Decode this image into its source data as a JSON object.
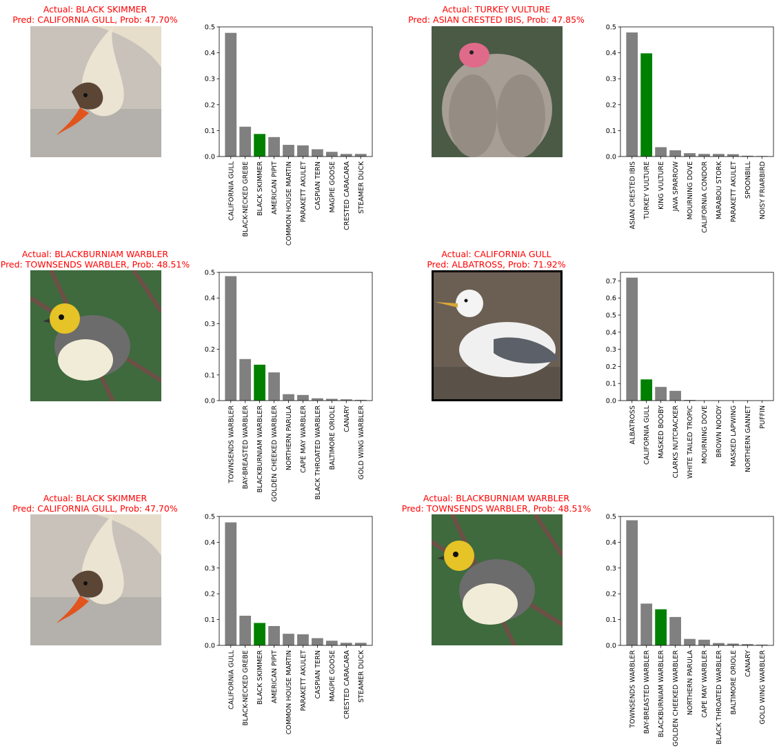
{
  "panels": [
    {
      "actual_text": "Actual: BLACK SKIMMER",
      "pred_text": "Pred: CALIFORNIA GULL, Prob: 47.70%",
      "image_icon": "black-skimmer-bird-photo",
      "chart_data": {
        "type": "bar",
        "categories": [
          "CALIFORNIA GULL",
          "BLACK-NECKED GREBE",
          "BLACK SKIMMER",
          "AMERICAN PIPIT",
          "COMMON HOUSE MARTIN",
          "PARAKETT  AKULET",
          "CASPIAN TERN",
          "MAGPIE GOOSE",
          "CRESTED CARACARA",
          "STEAMER DUCK"
        ],
        "values": [
          0.477,
          0.115,
          0.087,
          0.075,
          0.045,
          0.043,
          0.028,
          0.018,
          0.01,
          0.01
        ],
        "highlight_index": 2,
        "ylim": [
          0,
          0.5
        ],
        "yticks": [
          "0.0",
          "0.1",
          "0.2",
          "0.3",
          "0.4",
          "0.5"
        ],
        "bar_color": "#808080",
        "highlight_color": "#008000"
      }
    },
    {
      "actual_text": "Actual: TURKEY VULTURE",
      "pred_text": "Pred: ASIAN CRESTED IBIS, Prob: 47.85%",
      "image_icon": "turkey-vulture-bird-photo",
      "chart_data": {
        "type": "bar",
        "categories": [
          "ASIAN CRESTED IBIS",
          "TURKEY VULTURE",
          "KING VULTURE",
          "JAVA SPARROW",
          "MOURNING DOVE",
          "CALIFORNIA CONDOR",
          "MARABOU STORK",
          "PARAKETT  AKULET",
          "SPOONBILL",
          "NOISY FRIARBIRD"
        ],
        "values": [
          0.4785,
          0.398,
          0.036,
          0.024,
          0.013,
          0.01,
          0.01,
          0.009,
          0.003,
          0.002
        ],
        "highlight_index": 1,
        "ylim": [
          0,
          0.5
        ],
        "yticks": [
          "0.0",
          "0.1",
          "0.2",
          "0.3",
          "0.4",
          "0.5"
        ],
        "bar_color": "#808080",
        "highlight_color": "#008000"
      }
    },
    {
      "actual_text": "Actual: BLACKBURNIAM WARBLER",
      "pred_text": "Pred: TOWNSENDS WARBLER, Prob: 48.51%",
      "image_icon": "blackburnian-warbler-bird-photo",
      "chart_data": {
        "type": "bar",
        "categories": [
          "TOWNSENDS WARBLER",
          "BAY-BREASTED WARBLER",
          "BLACKBURNIAM WARBLER",
          "GOLDEN CHEEKED WARBLER",
          "NORTHERN PARULA",
          "CAPE MAY WARBLER",
          "BLACK THROATED WARBLER",
          "BALTIMORE ORIOLE",
          "CANARY",
          "GOLD WING WARBLER"
        ],
        "values": [
          0.4851,
          0.162,
          0.14,
          0.11,
          0.025,
          0.022,
          0.009,
          0.007,
          0.005,
          0.003
        ],
        "highlight_index": 2,
        "ylim": [
          0,
          0.5
        ],
        "yticks": [
          "0.0",
          "0.1",
          "0.2",
          "0.3",
          "0.4",
          "0.5"
        ],
        "bar_color": "#808080",
        "highlight_color": "#008000"
      }
    },
    {
      "actual_text": "Actual: CALIFORNIA GULL",
      "pred_text": "Pred: ALBATROSS, Prob: 71.92%",
      "image_icon": "california-gull-bird-photo",
      "chart_data": {
        "type": "bar",
        "categories": [
          "ALBATROSS",
          "CALIFORNIA GULL",
          "MASKED BOOBY",
          "CLARKS NUTCRACKER",
          "WHITE TAILED TROPIC",
          "MOURNING DOVE",
          "BROWN NOODY",
          "MASKED LAPWING",
          "NORTHERN GANNET",
          "PUFFIN"
        ],
        "values": [
          0.7192,
          0.124,
          0.08,
          0.057,
          0.004,
          0.001,
          0.001,
          0.001,
          0.0005,
          0.0005
        ],
        "highlight_index": 1,
        "ylim": [
          0,
          0.75
        ],
        "yticks": [
          "0.0",
          "0.1",
          "0.2",
          "0.3",
          "0.4",
          "0.5",
          "0.6",
          "0.7"
        ],
        "bar_color": "#808080",
        "highlight_color": "#008000"
      }
    },
    {
      "actual_text": "Actual: BLACK SKIMMER",
      "pred_text": "Pred: CALIFORNIA GULL, Prob: 47.70%",
      "image_icon": "black-skimmer-bird-photo",
      "chart_data": {
        "type": "bar",
        "categories": [
          "CALIFORNIA GULL",
          "BLACK-NECKED GREBE",
          "BLACK SKIMMER",
          "AMERICAN PIPIT",
          "COMMON HOUSE MARTIN",
          "PARAKETT  AKULET",
          "CASPIAN TERN",
          "MAGPIE GOOSE",
          "CRESTED CARACARA",
          "STEAMER DUCK"
        ],
        "values": [
          0.477,
          0.115,
          0.087,
          0.075,
          0.045,
          0.043,
          0.028,
          0.018,
          0.01,
          0.01
        ],
        "highlight_index": 2,
        "ylim": [
          0,
          0.5
        ],
        "yticks": [
          "0.0",
          "0.1",
          "0.2",
          "0.3",
          "0.4",
          "0.5"
        ],
        "bar_color": "#808080",
        "highlight_color": "#008000"
      }
    },
    {
      "actual_text": "Actual: BLACKBURNIAM WARBLER",
      "pred_text": "Pred: TOWNSENDS WARBLER, Prob: 48.51%",
      "image_icon": "blackburnian-warbler-bird-photo",
      "chart_data": {
        "type": "bar",
        "categories": [
          "TOWNSENDS WARBLER",
          "BAY-BREASTED WARBLER",
          "BLACKBURNIAM WARBLER",
          "GOLDEN CHEEKED WARBLER",
          "NORTHERN PARULA",
          "CAPE MAY WARBLER",
          "BLACK THROATED WARBLER",
          "BALTIMORE ORIOLE",
          "CANARY",
          "GOLD WING WARBLER"
        ],
        "values": [
          0.4851,
          0.162,
          0.14,
          0.11,
          0.025,
          0.022,
          0.009,
          0.007,
          0.005,
          0.003
        ],
        "highlight_index": 2,
        "ylim": [
          0,
          0.5
        ],
        "yticks": [
          "0.0",
          "0.1",
          "0.2",
          "0.3",
          "0.4",
          "0.5"
        ],
        "bar_color": "#808080",
        "highlight_color": "#008000"
      }
    }
  ]
}
